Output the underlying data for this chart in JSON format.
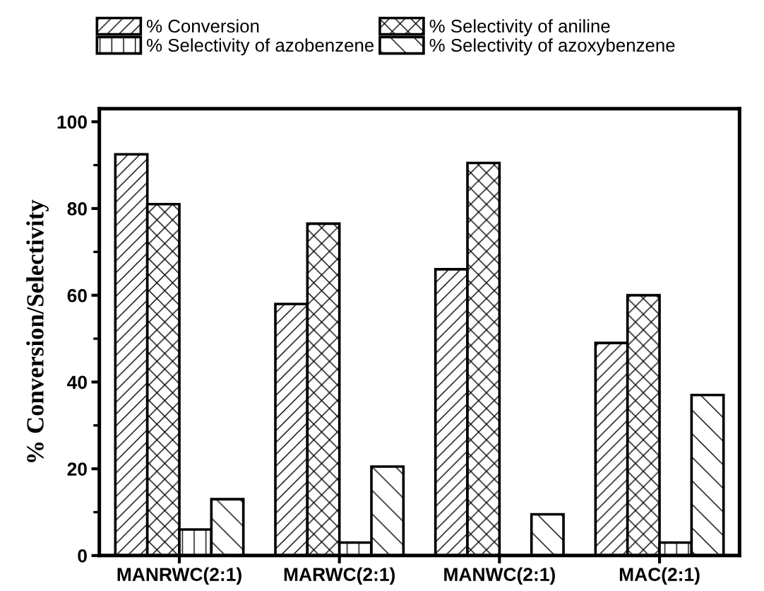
{
  "chart_data": {
    "type": "bar",
    "ylabel": "% Conversion/Selectivity",
    "categories": [
      "MANRWC(2:1)",
      "MARWC(2:1)",
      "MANWC(2:1)",
      "MAC(2:1)"
    ],
    "series": [
      {
        "name": "% Conversion",
        "color": "#000000",
        "values": [
          92.5,
          58,
          66,
          49
        ]
      },
      {
        "name": "% Selectivity of aniline",
        "color": "#000000",
        "values": [
          81,
          76.5,
          90.5,
          60
        ]
      },
      {
        "name": "% Selectivity of azobenzene",
        "color": "#000000",
        "values": [
          6,
          3,
          0,
          3
        ]
      },
      {
        "name": "% Selectivity of azoxybenzene",
        "color": "#000000",
        "values": [
          13,
          20.5,
          9.5,
          37
        ]
      }
    ],
    "ylim": [
      0,
      103
    ],
    "yticks": [
      0,
      20,
      40,
      60,
      80,
      100
    ],
    "grid": false,
    "legend": "top"
  }
}
